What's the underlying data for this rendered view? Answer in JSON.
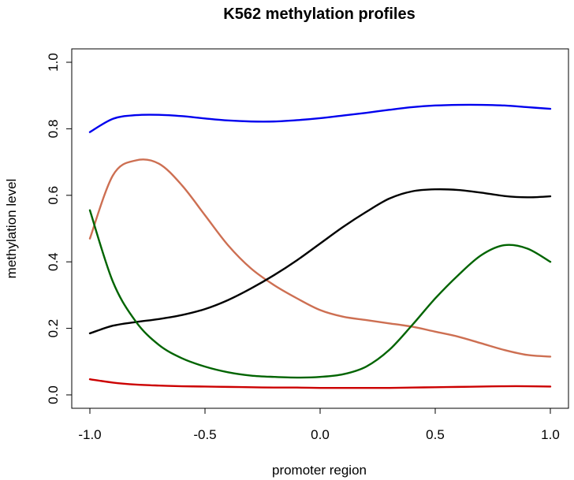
{
  "chart_data": {
    "type": "line",
    "title": "K562 methylation profiles",
    "xlabel": "promoter region",
    "ylabel": "methylation level",
    "xlim": [
      -1.0,
      1.0
    ],
    "ylim": [
      0.0,
      1.0
    ],
    "x_ticks": [
      "-1.0",
      "-0.5",
      "0.0",
      "0.5",
      "1.0"
    ],
    "y_ticks": [
      "0.0",
      "0.2",
      "0.4",
      "0.6",
      "0.8",
      "1.0"
    ],
    "grid": false,
    "legend": "none",
    "x": [
      -1.0,
      -0.9,
      -0.8,
      -0.7,
      -0.6,
      -0.5,
      -0.4,
      -0.3,
      -0.2,
      -0.1,
      0.0,
      0.1,
      0.2,
      0.3,
      0.4,
      0.5,
      0.6,
      0.7,
      0.8,
      0.9,
      1.0
    ],
    "series": [
      {
        "color": "#0000ee",
        "values": [
          0.79,
          0.83,
          0.841,
          0.842,
          0.838,
          0.831,
          0.825,
          0.822,
          0.822,
          0.826,
          0.832,
          0.84,
          0.848,
          0.857,
          0.865,
          0.87,
          0.872,
          0.872,
          0.87,
          0.865,
          0.86
        ]
      },
      {
        "color": "#cd6f52",
        "values": [
          0.47,
          0.66,
          0.705,
          0.695,
          0.63,
          0.54,
          0.45,
          0.38,
          0.33,
          0.29,
          0.255,
          0.235,
          0.225,
          0.215,
          0.205,
          0.19,
          0.175,
          0.155,
          0.135,
          0.12,
          0.115
        ]
      },
      {
        "color": "#000000",
        "values": [
          0.185,
          0.208,
          0.219,
          0.228,
          0.24,
          0.258,
          0.285,
          0.32,
          0.36,
          0.405,
          0.455,
          0.505,
          0.55,
          0.59,
          0.612,
          0.618,
          0.616,
          0.608,
          0.598,
          0.594,
          0.597
        ]
      },
      {
        "color": "#006400",
        "values": [
          0.555,
          0.34,
          0.22,
          0.15,
          0.11,
          0.085,
          0.068,
          0.058,
          0.054,
          0.052,
          0.054,
          0.062,
          0.085,
          0.135,
          0.21,
          0.29,
          0.36,
          0.42,
          0.45,
          0.44,
          0.4
        ]
      },
      {
        "color": "#cc0000",
        "values": [
          0.047,
          0.037,
          0.031,
          0.028,
          0.026,
          0.025,
          0.024,
          0.023,
          0.022,
          0.022,
          0.021,
          0.021,
          0.021,
          0.021,
          0.022,
          0.023,
          0.024,
          0.025,
          0.026,
          0.026,
          0.025
        ]
      }
    ]
  }
}
